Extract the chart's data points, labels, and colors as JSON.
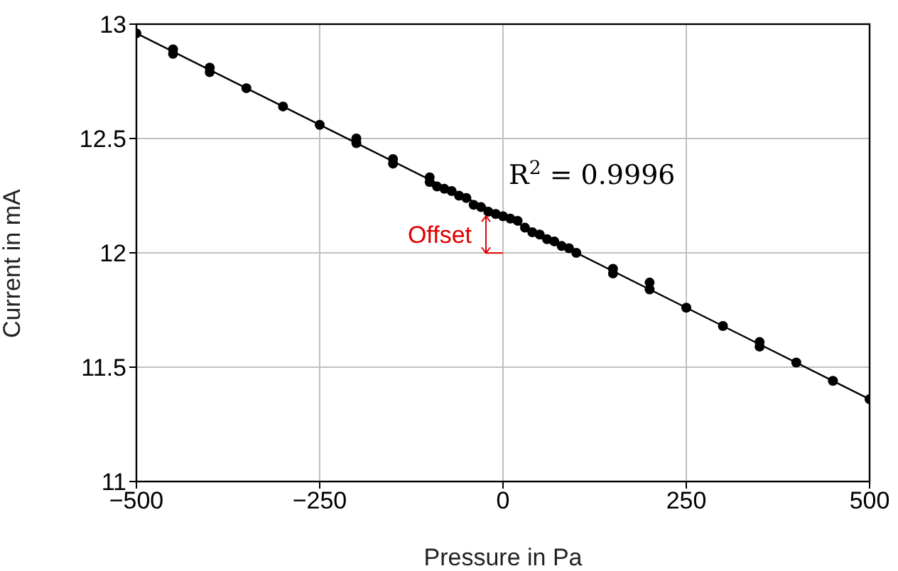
{
  "chart_data": {
    "type": "scatter",
    "xlabel": "Pressure in Pa",
    "ylabel": "Current in mA",
    "xlim": [
      -500,
      500
    ],
    "ylim": [
      11,
      13
    ],
    "xticks": [
      {
        "value": -500,
        "label": "−500"
      },
      {
        "value": -250,
        "label": "−250"
      },
      0,
      250,
      500
    ],
    "yticks": [
      11,
      11.5,
      12,
      12.5,
      13
    ],
    "grid": true,
    "marker": "circle",
    "series": [
      {
        "color": "#000000",
        "x": [
          -500,
          -450,
          -450,
          -400,
          -400,
          -350,
          -300,
          -250,
          -200,
          -200,
          -150,
          -150,
          -100,
          -100,
          -90,
          -80,
          -70,
          -60,
          -50,
          -40,
          -30,
          -20,
          -10,
          0,
          10,
          20,
          30,
          40,
          50,
          60,
          70,
          80,
          90,
          100,
          150,
          150,
          200,
          200,
          250,
          300,
          350,
          350,
          400,
          450,
          500
        ],
        "values": [
          12.96,
          12.89,
          12.87,
          12.81,
          12.79,
          12.72,
          12.64,
          12.56,
          12.5,
          12.48,
          12.41,
          12.39,
          12.33,
          12.31,
          12.29,
          12.28,
          12.27,
          12.25,
          12.24,
          12.21,
          12.2,
          12.18,
          12.17,
          12.16,
          12.15,
          12.14,
          12.11,
          12.09,
          12.08,
          12.06,
          12.05,
          12.03,
          12.02,
          12,
          11.93,
          11.91,
          11.87,
          11.84,
          11.76,
          11.68,
          11.61,
          11.59,
          11.52,
          11.44,
          11.36
        ]
      },
      {
        "type": "line",
        "marker": "none",
        "color": "#000000",
        "x": [
          -500,
          500
        ],
        "values": [
          12.96,
          11.36
        ]
      }
    ],
    "annotations": [
      "R$^{2}$ = 0.9996",
      "Offset"
    ]
  }
}
